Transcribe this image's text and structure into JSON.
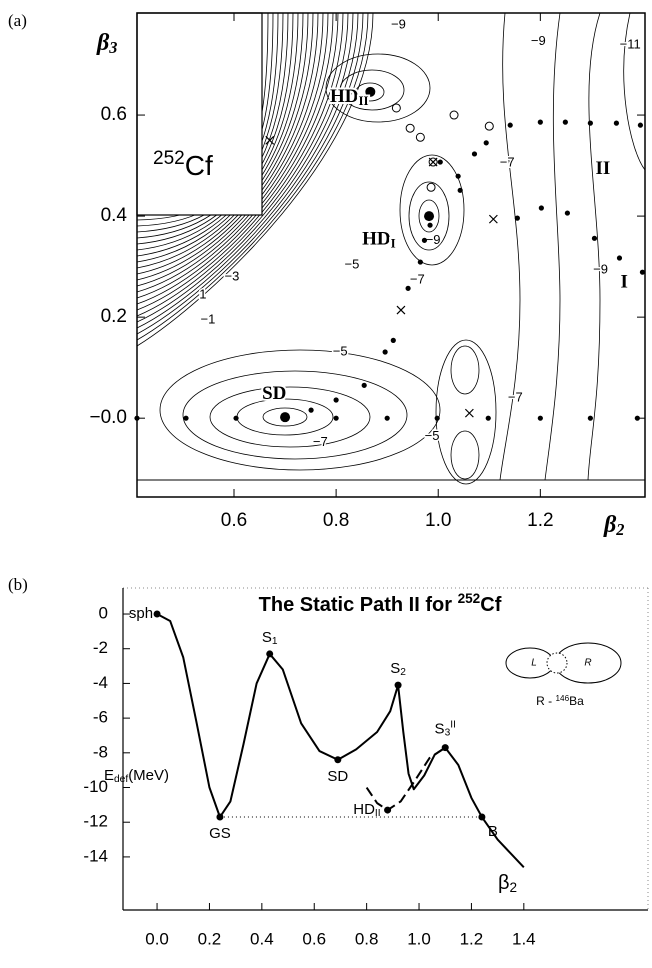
{
  "chart_data": [
    {
      "type": "contour",
      "panel_label": "(a)",
      "inset_text": {
        "sup": "252",
        "base": "Cf"
      },
      "x_label": {
        "symbol": "β",
        "sub": "2"
      },
      "y_label": {
        "symbol": "β",
        "sub": "3"
      },
      "xlim": [
        0.41,
        1.405
      ],
      "ylim": [
        -0.156,
        0.802
      ],
      "xticks": [
        0.6,
        0.8,
        {
          "value": 1,
          "label": "1.0"
        },
        1.2
      ],
      "yticks": [
        {
          "value": 0,
          "label": "−0.0"
        },
        0.2,
        0.4,
        0.6
      ],
      "series": [
        {
          "marker": "dot",
          "color": "#000000",
          "x": [
            0.41,
            0.506,
            0.604,
            0.751,
            0.8,
            0.9,
            0.998,
            1.098,
            1.2,
            1.298,
            1.39,
            0.8,
            0.855,
            0.896,
            0.912,
            0.941,
            0.965,
            0.973,
            0.984,
            1.043,
            1.039,
            1.004,
            1.071,
            1.094,
            1.141,
            1.2,
            1.249,
            1.298,
            1.349,
            1.396,
            1.355,
            1.4,
            1.306,
            1.253,
            1.202,
            1.155
          ],
          "y": [
            0,
            0,
            0,
            0.016,
            0,
            0,
            0,
            0,
            0,
            0,
            0,
            0.036,
            0.065,
            0.131,
            0.154,
            0.257,
            0.309,
            0.352,
            0.382,
            0.451,
            0.479,
            0.507,
            0.523,
            0.545,
            0.58,
            0.586,
            0.586,
            0.584,
            0.584,
            0.58,
            0.317,
            0.289,
            0.356,
            0.406,
            0.416,
            0.396
          ]
        },
        {
          "marker": "big-dot",
          "color": "#000000",
          "x": [
            0.7,
            0.982,
            0.867
          ],
          "y": [
            0.002,
            0.4,
            0.646
          ]
        },
        {
          "marker": "open-circle",
          "color": "#000000",
          "x": [
            0.918,
            0.945,
            0.965,
            0.99,
            0.986,
            1.031,
            1.1
          ],
          "y": [
            0.614,
            0.574,
            0.556,
            0.507,
            0.457,
            0.6,
            0.578
          ]
        },
        {
          "marker": "cross",
          "color": "#000000",
          "x": [
            1.108,
            0.927,
            1.061,
            0.99,
            0.67
          ],
          "y": [
            0.394,
            0.214,
            0.01,
            0.507,
            0.55
          ]
        }
      ],
      "annotations": [
        {
          "text": "SD",
          "x": 0.655,
          "y": 0.046
        },
        {
          "text": "HD",
          "sub": "II",
          "x": 0.788,
          "y": 0.634
        },
        {
          "text": "HD",
          "sub": "I",
          "x": 0.851,
          "y": 0.352
        },
        {
          "text": "II",
          "x": 1.308,
          "y": 0.491
        },
        {
          "text": "I",
          "x": 1.357,
          "y": 0.267
        }
      ],
      "contour_labels": [
        {
          "text": "−5",
          "x": 0.808,
          "y": 0.131
        },
        {
          "text": "−7",
          "x": 0.769,
          "y": -0.048
        },
        {
          "text": "−5",
          "x": 0.988,
          "y": -0.036
        },
        {
          "text": "−7",
          "x": 1.151,
          "y": 0.04
        },
        {
          "text": "−9",
          "x": 0.99,
          "y": 0.352
        },
        {
          "text": "−7",
          "x": 0.959,
          "y": 0.273
        },
        {
          "text": "1",
          "x": 0.539,
          "y": 0.244
        },
        {
          "text": "−1",
          "x": 0.549,
          "y": 0.194
        },
        {
          "text": "−3",
          "x": 0.596,
          "y": 0.279
        },
        {
          "text": "−5",
          "x": 0.831,
          "y": 0.303
        },
        {
          "text": "−9",
          "x": 1.318,
          "y": 0.293
        },
        {
          "text": "−7",
          "x": 1.135,
          "y": 0.505
        },
        {
          "text": "−9",
          "x": 1.196,
          "y": 0.745
        },
        {
          "text": "−11",
          "x": 1.376,
          "y": 0.739
        },
        {
          "text": "−9",
          "x": 0.922,
          "y": 0.778
        }
      ]
    },
    {
      "type": "line",
      "panel_label": "(b)",
      "title": {
        "pre": "The Static Path II for ",
        "sup": "252",
        "post": "Cf"
      },
      "y_label": {
        "base": "E",
        "sub": "def",
        "post": "(MeV)"
      },
      "x_label": {
        "symbol": "β",
        "sub": "2"
      },
      "xlim": [
        -0.13,
        1.874
      ],
      "ylim": [
        -17.06,
        1.5
      ],
      "xticks": [
        {
          "value": 0,
          "label": "0.0"
        },
        0.2,
        0.4,
        0.6,
        0.8,
        {
          "value": 1,
          "label": "1.0"
        },
        1.2,
        1.4
      ],
      "yticks": [
        0,
        -2,
        -4,
        -6,
        -8,
        -10,
        -12,
        -14
      ],
      "series": [
        {
          "style": "solid",
          "color": "#000000",
          "x": [
            0,
            0.05,
            0.1,
            0.15,
            0.2,
            0.24,
            0.28,
            0.33,
            0.38,
            0.43,
            0.48,
            0.55,
            0.62,
            0.69,
            0.76,
            0.84,
            0.89,
            0.92,
            0.94,
            0.96,
            0.98,
            1.02,
            1.06,
            1.1,
            1.15,
            1.2,
            1.24,
            1.3,
            1.4
          ],
          "y": [
            0,
            -0.4,
            -2.5,
            -6.2,
            -10,
            -11.7,
            -10.8,
            -7.5,
            -4,
            -2.3,
            -3.2,
            -6.3,
            -7.9,
            -8.4,
            -7.8,
            -6.8,
            -5.6,
            -4.1,
            -6.8,
            -9.2,
            -10.1,
            -9.3,
            -8.1,
            -7.7,
            -8.7,
            -10.6,
            -11.7,
            -13,
            -14.6
          ]
        },
        {
          "style": "dashed",
          "color": "#000000",
          "x": [
            0.8,
            0.84,
            0.88,
            0.93,
            0.98,
            1.04,
            1.1
          ],
          "y": [
            -10,
            -10.9,
            -11.3,
            -10.8,
            -9.7,
            -8.3,
            -7.7
          ]
        }
      ],
      "points": [
        {
          "label": "sph",
          "x": 0,
          "y": 0
        },
        {
          "label": "GS",
          "x": 0.24,
          "y": -11.7
        },
        {
          "label": "S",
          "sub": "1",
          "x": 0.43,
          "y": -2.3
        },
        {
          "label": "SD",
          "x": 0.69,
          "y": -8.4
        },
        {
          "label": "S",
          "sub": "2",
          "x": 0.92,
          "y": -4.1
        },
        {
          "label": "S",
          "sub": "3",
          "sup": "II",
          "x": 1.1,
          "y": -7.7
        },
        {
          "label": "HD",
          "sub": "II",
          "x": 0.88,
          "y": -11.3
        },
        {
          "label": "B",
          "x": 1.24,
          "y": -11.7
        }
      ],
      "reference_line": {
        "x": [
          0.24,
          1.24
        ],
        "y": -11.7
      },
      "inset": {
        "left": "L",
        "right": "R",
        "caption": {
          "pre": "R - ",
          "sup": "146",
          "base": "Ba"
        }
      }
    }
  ]
}
